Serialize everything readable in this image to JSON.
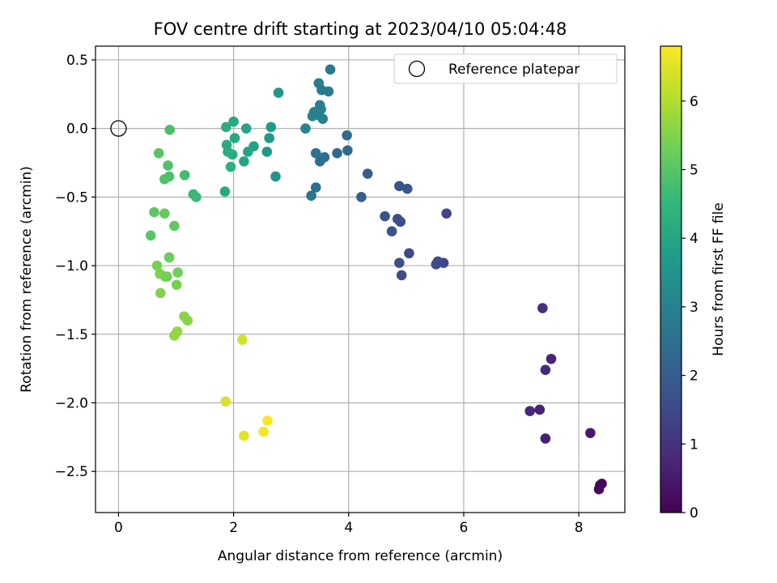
{
  "chart_data": {
    "type": "scatter",
    "title": "FOV centre drift starting at 2023/04/10 05:04:48",
    "xlabel": "Angular distance from reference (arcmin)",
    "ylabel": "Rotation from reference (arcmin)",
    "xlim": [
      -0.4,
      8.8
    ],
    "ylim": [
      -2.8,
      0.6
    ],
    "x_ticks": [
      0,
      2,
      4,
      6,
      8
    ],
    "x_tick_labels": [
      "0",
      "2",
      "4",
      "6",
      "8"
    ],
    "y_ticks": [
      0.5,
      0.0,
      -0.5,
      -1.0,
      -1.5,
      -2.0,
      -2.5
    ],
    "y_tick_labels": [
      "0.5",
      "0.0",
      "−0.5",
      "−1.0",
      "−1.5",
      "−2.0",
      "−2.5"
    ],
    "grid": true,
    "legend": {
      "placement": "top-right",
      "entries": [
        {
          "label": "Reference platepar",
          "marker": "open-circle",
          "color": "#000000"
        }
      ]
    },
    "reference_point": {
      "x": 0.0,
      "y": 0.0
    },
    "colorbar": {
      "label": "Hours from first FF file",
      "range": [
        0,
        6.8
      ],
      "ticks": [
        0,
        1,
        2,
        3,
        4,
        5,
        6
      ],
      "tick_labels": [
        "0",
        "1",
        "2",
        "3",
        "4",
        "5",
        "6"
      ],
      "colormap": "viridis"
    },
    "series": [
      {
        "x": [
          8.37,
          8.4,
          8.35,
          8.2,
          7.52,
          7.42,
          7.37,
          7.42,
          7.32,
          7.15,
          5.7,
          5.65,
          5.55,
          5.52,
          5.05,
          4.9,
          4.85,
          4.92,
          4.88,
          4.75,
          4.63,
          5.02,
          4.88,
          4.33,
          4.22,
          3.8,
          3.97,
          3.98,
          3.68,
          3.65,
          3.48,
          3.53,
          3.5,
          3.52,
          3.55,
          3.58,
          3.45,
          3.5,
          3.43,
          3.4,
          3.37,
          3.25,
          3.43,
          3.35,
          2.78,
          2.73,
          2.65,
          2.62,
          2.58,
          2.35,
          2.25,
          2.22,
          2.18,
          2.02,
          2.0,
          1.98,
          1.95,
          1.9,
          1.88,
          1.87,
          1.85,
          1.35,
          1.3,
          1.15,
          0.89,
          0.88,
          0.86,
          0.8,
          0.7,
          0.88,
          0.84,
          0.97,
          0.62,
          0.8,
          0.56,
          1.03,
          0.88,
          0.67,
          0.72,
          0.81,
          1.01,
          0.73,
          1.14,
          1.2,
          1.02,
          0.97,
          2.15,
          1.86,
          2.18,
          2.52,
          2.59
        ],
        "y": [
          -2.6,
          -2.59,
          -2.63,
          -2.22,
          -1.68,
          -1.76,
          -1.31,
          -2.26,
          -2.05,
          -2.06,
          -0.62,
          -0.98,
          -0.97,
          -0.99,
          -0.91,
          -0.68,
          -0.66,
          -1.07,
          -0.98,
          -0.75,
          -0.64,
          -0.44,
          -0.42,
          -0.33,
          -0.5,
          -0.18,
          -0.05,
          -0.16,
          0.43,
          0.27,
          0.33,
          0.28,
          0.17,
          0.14,
          0.07,
          -0.21,
          0.1,
          -0.24,
          -0.18,
          0.12,
          0.09,
          0.0,
          -0.43,
          -0.49,
          0.26,
          -0.35,
          0.01,
          -0.07,
          -0.17,
          -0.13,
          -0.17,
          0.0,
          -0.24,
          -0.07,
          0.05,
          -0.19,
          -0.28,
          -0.17,
          -0.12,
          0.01,
          -0.46,
          -0.5,
          -0.48,
          -0.34,
          -0.01,
          -0.35,
          -0.27,
          -0.37,
          -0.18,
          -0.94,
          -1.08,
          -0.71,
          -0.61,
          -0.62,
          -0.78,
          -1.05,
          -0.94,
          -1.0,
          -1.06,
          -1.08,
          -1.14,
          -1.2,
          -1.37,
          -1.4,
          -1.48,
          -1.51,
          -1.54,
          -1.99,
          -2.24,
          -2.21,
          -2.13
        ],
        "hours": [
          0.05,
          0.15,
          0.1,
          0.5,
          0.7,
          0.8,
          0.9,
          0.6,
          0.65,
          0.75,
          1.45,
          1.45,
          1.5,
          1.5,
          1.55,
          1.6,
          1.6,
          1.55,
          1.65,
          1.7,
          1.75,
          1.8,
          1.8,
          2.0,
          2.05,
          2.3,
          2.35,
          2.3,
          2.75,
          2.8,
          2.85,
          2.8,
          2.85,
          2.9,
          2.95,
          2.4,
          2.9,
          2.45,
          2.55,
          3.0,
          3.05,
          3.1,
          2.5,
          2.6,
          3.55,
          3.5,
          3.7,
          3.65,
          3.6,
          3.9,
          3.95,
          4.0,
          4.0,
          4.1,
          4.05,
          4.2,
          4.3,
          4.2,
          4.15,
          4.25,
          4.1,
          4.6,
          4.6,
          4.7,
          4.8,
          4.8,
          4.9,
          4.9,
          5.0,
          4.95,
          5.1,
          5.1,
          5.05,
          5.15,
          5.0,
          5.3,
          5.25,
          5.4,
          5.45,
          5.35,
          5.4,
          5.5,
          5.6,
          5.55,
          5.7,
          5.65,
          6.35,
          6.4,
          6.5,
          6.7,
          6.8
        ]
      }
    ]
  }
}
